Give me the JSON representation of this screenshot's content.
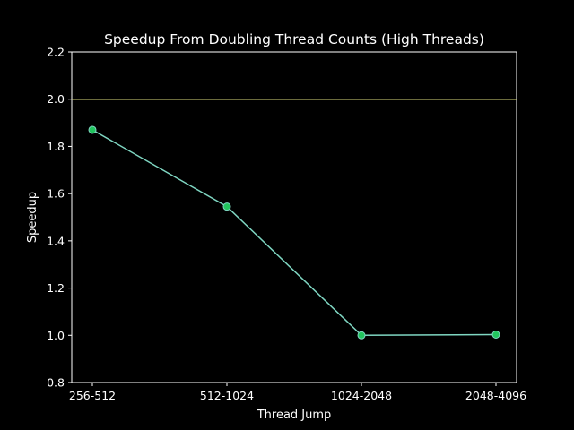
{
  "chart_data": {
    "type": "line",
    "title": "Speedup From Doubling Thread Counts (High Threads)",
    "xlabel": "Thread Jump",
    "ylabel": "Speedup",
    "categories": [
      "256-512",
      "512-1024",
      "1024-2048",
      "2048-4096"
    ],
    "series": [
      {
        "values": [
          1.87,
          1.545,
          1.0,
          1.003
        ],
        "line_color": "#7fd6c2",
        "marker_color": "#22c55e"
      }
    ],
    "reference_line": {
      "y": 2.0,
      "color": "#d9d97a"
    },
    "ylim": [
      0.8,
      2.2
    ],
    "yticks": [
      "0.8",
      "1.0",
      "1.2",
      "1.4",
      "1.6",
      "1.8",
      "2.0",
      "2.2"
    ],
    "grid": false,
    "background": "#000000",
    "axis_color": "#ffffff"
  }
}
